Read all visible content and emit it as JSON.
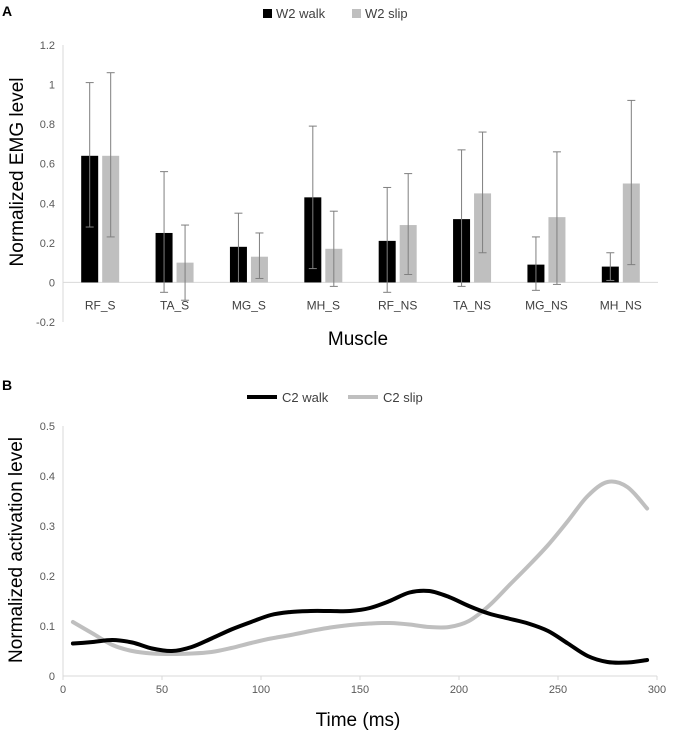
{
  "chart_data": [
    {
      "panel": "A",
      "type": "bar",
      "xlabel": "Muscle",
      "ylabel": "Normalized EMG level",
      "ylim": [
        -0.2,
        1.2
      ],
      "yticks": [
        "-0.2",
        "0",
        "0.2",
        "0.4",
        "0.6",
        "0.8",
        "1",
        "1.2"
      ],
      "categories": [
        "RF_S",
        "TA_S",
        "MG_S",
        "MH_S",
        "RF_NS",
        "TA_NS",
        "MG_NS",
        "MH_NS"
      ],
      "legend_position": "top-center",
      "series": [
        {
          "name": "W2 walk",
          "color": "#000000",
          "values": [
            0.64,
            0.25,
            0.18,
            0.43,
            0.21,
            0.32,
            0.09,
            0.08
          ],
          "err_low": [
            0.28,
            -0.05,
            0.0,
            0.07,
            -0.05,
            -0.02,
            -0.04,
            0.01
          ],
          "err_high": [
            1.01,
            0.56,
            0.35,
            0.79,
            0.48,
            0.67,
            0.23,
            0.15
          ]
        },
        {
          "name": "W2 slip",
          "color": "#bfbfbf",
          "values": [
            0.64,
            0.1,
            0.13,
            0.17,
            0.29,
            0.45,
            0.33,
            0.5
          ],
          "err_low": [
            0.23,
            -0.09,
            0.02,
            -0.02,
            0.04,
            0.15,
            -0.01,
            0.09
          ],
          "err_high": [
            1.06,
            0.29,
            0.25,
            0.36,
            0.55,
            0.76,
            0.66,
            0.92
          ]
        }
      ]
    },
    {
      "panel": "B",
      "type": "line",
      "xlabel": "Time (ms)",
      "ylabel": "Normalized activation level",
      "xlim": [
        0,
        300
      ],
      "ylim": [
        0,
        0.5
      ],
      "xticks": [
        "0",
        "50",
        "100",
        "150",
        "200",
        "250",
        "300"
      ],
      "yticks": [
        "0",
        "0.1",
        "0.2",
        "0.3",
        "0.4",
        "0.5"
      ],
      "legend_position": "top-center",
      "series": [
        {
          "name": "C2 walk",
          "color": "#000000",
          "x": [
            5,
            15,
            25,
            35,
            45,
            55,
            65,
            75,
            85,
            95,
            105,
            115,
            125,
            135,
            145,
            155,
            165,
            175,
            185,
            195,
            205,
            215,
            225,
            235,
            245,
            255,
            265,
            275,
            285,
            295
          ],
          "y": [
            0.065,
            0.068,
            0.072,
            0.067,
            0.055,
            0.05,
            0.058,
            0.075,
            0.093,
            0.108,
            0.122,
            0.128,
            0.13,
            0.13,
            0.13,
            0.136,
            0.15,
            0.167,
            0.17,
            0.158,
            0.14,
            0.125,
            0.115,
            0.105,
            0.09,
            0.065,
            0.04,
            0.028,
            0.027,
            0.032
          ]
        },
        {
          "name": "C2 slip",
          "color": "#bfbfbf",
          "x": [
            5,
            15,
            25,
            35,
            45,
            55,
            65,
            75,
            85,
            95,
            105,
            115,
            125,
            135,
            145,
            155,
            165,
            175,
            185,
            195,
            205,
            215,
            225,
            235,
            245,
            255,
            265,
            275,
            285,
            295
          ],
          "y": [
            0.108,
            0.085,
            0.062,
            0.05,
            0.045,
            0.044,
            0.045,
            0.048,
            0.056,
            0.066,
            0.075,
            0.082,
            0.09,
            0.097,
            0.102,
            0.105,
            0.106,
            0.103,
            0.098,
            0.098,
            0.11,
            0.14,
            0.18,
            0.22,
            0.262,
            0.31,
            0.36,
            0.388,
            0.378,
            0.335
          ]
        }
      ]
    }
  ]
}
